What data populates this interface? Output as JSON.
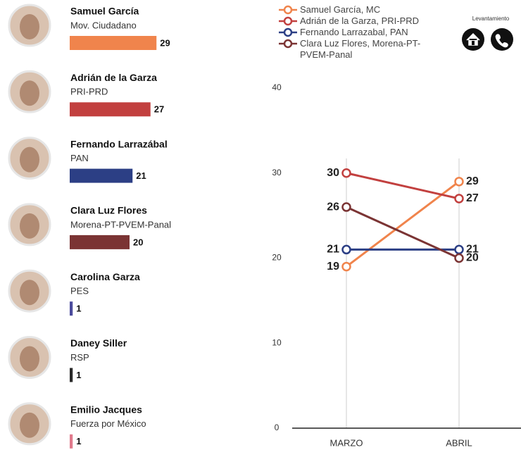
{
  "chart_data": [
    {
      "type": "bar",
      "categories": [
        "Samuel García",
        "Adrián de la Garza",
        "Fernando Larrazábal",
        "Clara Luz Flores",
        "Carolina Garza",
        "Daney Siller",
        "Emilio Jacques"
      ],
      "parties": [
        "Mov. Ciudadano",
        "PRI-PRD",
        "PAN",
        "Morena-PT-PVEM-Panal",
        "PES",
        "RSP",
        "Fuerza por México"
      ],
      "values": [
        29,
        27,
        21,
        20,
        1,
        1,
        1
      ],
      "colors": [
        "#f0844c",
        "#c2403f",
        "#2c3f85",
        "#7b3434",
        "#4b4b9c",
        "#2a2a2a",
        "#e07a8c"
      ]
    },
    {
      "type": "line",
      "categories": [
        "MARZO",
        "ABRIL"
      ],
      "series": [
        {
          "name": "Samuel García, MC",
          "color": "#f0844c",
          "values": [
            19,
            29
          ]
        },
        {
          "name": "Adrián de la Garza, PRI-PRD",
          "color": "#c2403f",
          "values": [
            30,
            27
          ]
        },
        {
          "name": "Fernando Larrazabal, PAN",
          "color": "#2c3f85",
          "values": [
            21,
            21
          ]
        },
        {
          "name": "Clara Luz Flores, Morena-PT-PVEM-Panal",
          "color": "#7b3434",
          "values": [
            26,
            20
          ]
        }
      ],
      "ylim": [
        0,
        40
      ],
      "yticks": [
        0,
        10,
        20,
        30,
        40
      ],
      "legend": "top"
    }
  ],
  "header_label": "Levantamiento"
}
